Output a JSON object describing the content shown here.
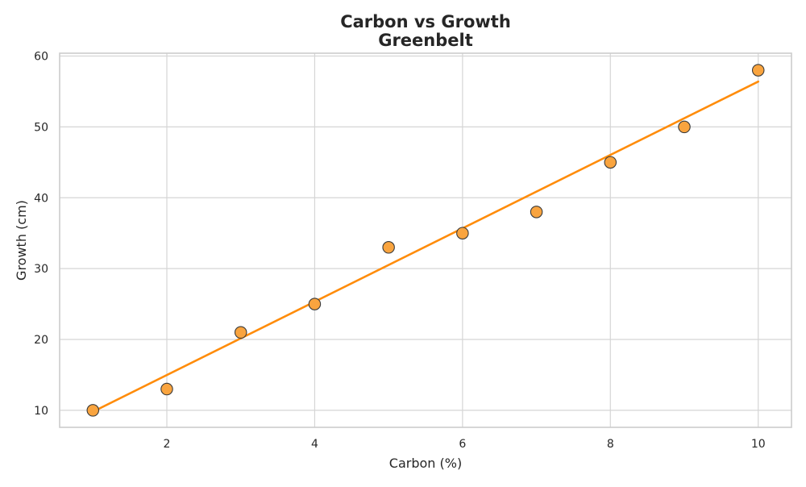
{
  "chart_data": {
    "type": "scatter",
    "title": "Carbon vs Growth",
    "subtitle": "Greenbelt",
    "xlabel": "Carbon (%)",
    "ylabel": "Growth (cm)",
    "xlim": [
      0.55,
      10.45
    ],
    "ylim": [
      7.6,
      60.4
    ],
    "xticks": [
      2,
      4,
      6,
      8,
      10
    ],
    "yticks": [
      10,
      20,
      30,
      40,
      50,
      60
    ],
    "grid": true,
    "legend": "none",
    "colors": {
      "marker_fill": "#f9a43f",
      "marker_edge": "#3a3a3a",
      "trendline": "#ff8c0a",
      "grid": "#d5d5d5",
      "axes_edge": "#cccccc",
      "text": "#262626"
    },
    "series": [
      {
        "x": [
          1,
          2,
          3,
          4,
          5,
          6,
          7,
          8,
          9,
          10
        ],
        "y": [
          10,
          13,
          21,
          25,
          33,
          35,
          38,
          45,
          50,
          58
        ]
      }
    ],
    "trendline": {
      "type": "linear",
      "x": [
        1,
        10
      ],
      "y": [
        9.8,
        56.4
      ]
    }
  }
}
